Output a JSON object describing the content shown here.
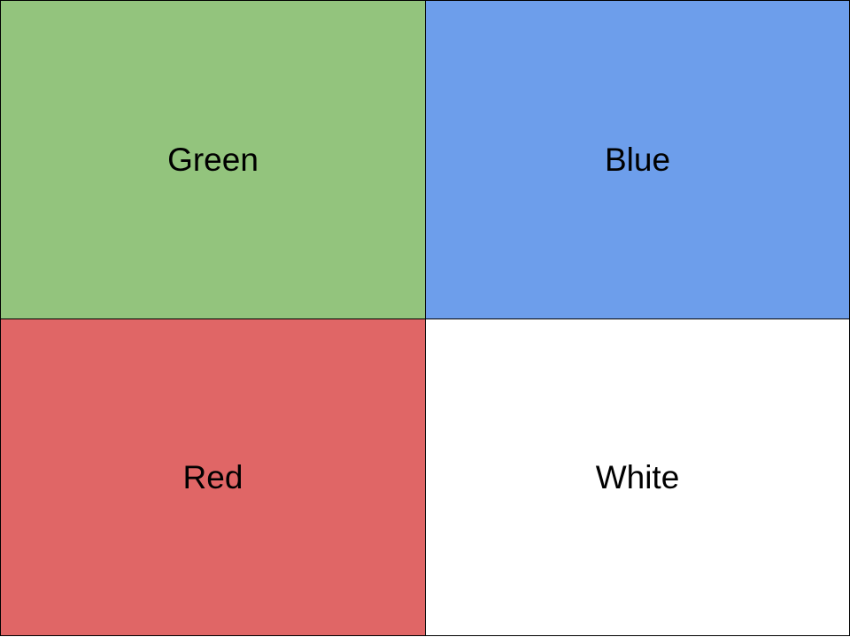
{
  "quadrants": [
    {
      "label": "Green",
      "color": "#93c47d"
    },
    {
      "label": "Blue",
      "color": "#6d9eeb"
    },
    {
      "label": "Red",
      "color": "#e06666"
    },
    {
      "label": "White",
      "color": "#ffffff"
    }
  ]
}
